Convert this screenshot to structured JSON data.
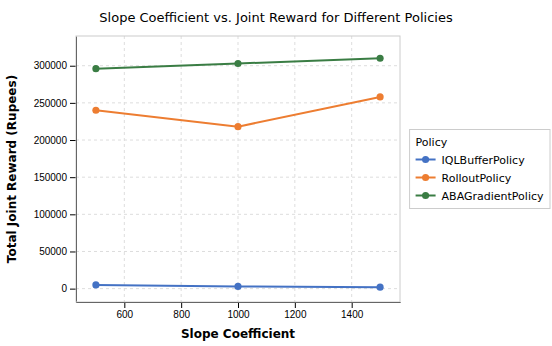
{
  "chart_data": {
    "type": "line",
    "title": "Slope Coefficient vs. Joint Reward for Different Policies",
    "x_label": "Slope Coefficient",
    "y_label": "Total Joint Reward (Rupees)",
    "x": [
      500,
      1000,
      1500
    ],
    "series": [
      {
        "name": "IQLBufferPolicy",
        "color": "#4472C4",
        "values": [
          5000,
          3000,
          2000
        ]
      },
      {
        "name": "RolloutPolicy",
        "color": "#ED7D31",
        "values": [
          240000,
          218000,
          258000
        ]
      },
      {
        "name": "ABAGradientPolicy",
        "color": "#3a7d44",
        "values": [
          296000,
          303000,
          310000
        ]
      }
    ],
    "legend_title": "Policy",
    "legend": "right",
    "marker": "circle",
    "xlim": [
      430,
      1570
    ],
    "ylim": [
      -18000,
      340000
    ],
    "xticks": [
      600,
      800,
      1000,
      1200,
      1400
    ],
    "yticks": [
      0,
      50000,
      100000,
      150000,
      200000,
      250000,
      300000
    ],
    "grid": true
  }
}
